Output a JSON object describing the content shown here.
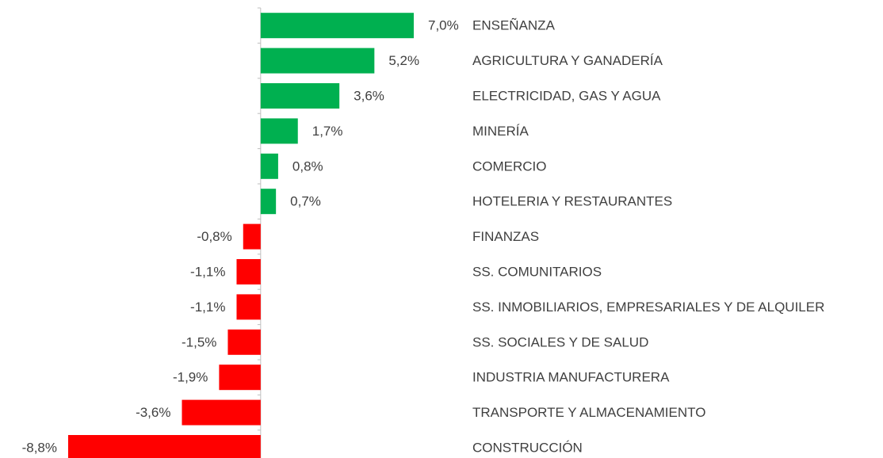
{
  "chart_data": {
    "type": "bar",
    "orientation": "horizontal",
    "categories": [
      "ENSEÑANZA",
      "AGRICULTURA Y GANADERÍA",
      "ELECTRICIDAD, GAS Y AGUA",
      "MINERÍA",
      "COMERCIO",
      "HOTELERIA Y RESTAURANTES",
      "FINANZAS",
      "SS. COMUNITARIOS",
      "SS. INMOBILIARIOS, EMPRESARIALES Y DE ALQUILER",
      "SS. SOCIALES Y DE SALUD",
      "INDUSTRIA MANUFACTURERA",
      "TRANSPORTE Y ALMACENAMIENTO",
      "CONSTRUCCIÓN"
    ],
    "values": [
      7.0,
      5.2,
      3.6,
      1.7,
      0.8,
      0.7,
      -0.8,
      -1.1,
      -1.1,
      -1.5,
      -1.9,
      -3.6,
      -8.8
    ],
    "value_labels": [
      "7,0%",
      "5,2%",
      "3,6%",
      "1,7%",
      "0,8%",
      "0,7%",
      "-0,8%",
      "-1,1%",
      "-1,1%",
      "-1,5%",
      "-1,9%",
      "-3,6%",
      "-8,8%"
    ],
    "colors": [
      "#00b050",
      "#00b050",
      "#00b050",
      "#00b050",
      "#00b050",
      "#00b050",
      "#ff0000",
      "#ff0000",
      "#ff0000",
      "#ff0000",
      "#ff0000",
      "#ff0000",
      "#ff0000"
    ],
    "xlim": [
      -8.8,
      7.0
    ]
  }
}
